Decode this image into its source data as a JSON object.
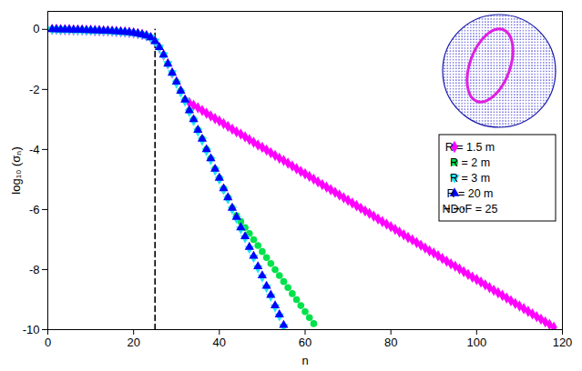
{
  "chart_data": {
    "type": "scatter",
    "x_label": "n",
    "y_label": "log₁₀ (σₙ)",
    "xlim": [
      0,
      120
    ],
    "xticks": [
      0,
      20,
      40,
      60,
      80,
      100,
      120
    ],
    "ylim": [
      -10,
      0.6
    ],
    "yticks": [
      -10,
      -8,
      -6,
      -4,
      -2,
      0
    ],
    "grid": false,
    "legend": "right",
    "series": [
      {
        "name": "R = 1.5 m",
        "color": "#ff00ff",
        "marker": "diamond",
        "x": [
          1,
          2,
          3,
          4,
          5,
          6,
          7,
          8,
          9,
          10,
          11,
          12,
          13,
          14,
          15,
          16,
          17,
          18,
          19,
          20,
          21,
          22,
          23,
          24,
          25,
          26,
          27,
          28,
          29,
          30,
          31,
          32,
          33,
          34,
          35,
          36,
          37,
          38,
          39,
          40,
          41,
          42,
          43,
          44,
          45,
          46,
          47,
          48,
          49,
          50,
          51,
          52,
          53,
          54,
          55,
          56,
          57,
          58,
          59,
          60,
          61,
          62,
          63,
          64,
          65,
          66,
          67,
          68,
          69,
          70,
          71,
          72,
          73,
          74,
          75,
          76,
          77,
          78,
          79,
          80,
          81,
          82,
          83,
          84,
          85,
          86,
          87,
          88,
          89,
          90,
          91,
          92,
          93,
          94,
          95,
          96,
          97,
          98,
          99,
          100,
          101,
          102,
          103,
          104,
          105,
          106,
          107,
          108,
          109,
          110,
          111,
          112,
          113,
          114,
          115,
          116,
          117,
          118
        ],
        "values": [
          0,
          0,
          -0.01,
          -0.01,
          -0.01,
          -0.02,
          -0.02,
          -0.02,
          -0.03,
          -0.03,
          -0.04,
          -0.04,
          -0.05,
          -0.05,
          -0.06,
          -0.07,
          -0.08,
          -0.09,
          -0.1,
          -0.12,
          -0.14,
          -0.17,
          -0.21,
          -0.27,
          -0.4,
          -0.6,
          -0.85,
          -1.15,
          -1.45,
          -1.75,
          -2.05,
          -2.35,
          -2.44,
          -2.53,
          -2.61,
          -2.7,
          -2.79,
          -2.88,
          -2.97,
          -3.05,
          -3.14,
          -3.23,
          -3.32,
          -3.41,
          -3.49,
          -3.58,
          -3.67,
          -3.76,
          -3.85,
          -3.93,
          -4.02,
          -4.11,
          -4.2,
          -4.29,
          -4.37,
          -4.46,
          -4.55,
          -4.64,
          -4.73,
          -4.81,
          -4.9,
          -4.99,
          -5.08,
          -5.17,
          -5.25,
          -5.34,
          -5.43,
          -5.52,
          -5.61,
          -5.69,
          -5.78,
          -5.87,
          -5.96,
          -6.05,
          -6.13,
          -6.22,
          -6.31,
          -6.4,
          -6.49,
          -6.57,
          -6.66,
          -6.75,
          -6.84,
          -6.93,
          -7.01,
          -7.1,
          -7.19,
          -7.28,
          -7.37,
          -7.45,
          -7.54,
          -7.63,
          -7.72,
          -7.81,
          -7.89,
          -7.98,
          -8.07,
          -8.16,
          -8.25,
          -8.33,
          -8.42,
          -8.51,
          -8.6,
          -8.69,
          -8.77,
          -8.86,
          -8.95,
          -9.04,
          -9.13,
          -9.21,
          -9.3,
          -9.39,
          -9.48,
          -9.57,
          -9.65,
          -9.74,
          -9.83,
          -9.92
        ]
      },
      {
        "name": "R = 2 m",
        "color": "#00e24a",
        "marker": "circle",
        "x": [
          1,
          2,
          3,
          4,
          5,
          6,
          7,
          8,
          9,
          10,
          11,
          12,
          13,
          14,
          15,
          16,
          17,
          18,
          19,
          20,
          21,
          22,
          23,
          24,
          25,
          26,
          27,
          28,
          29,
          30,
          31,
          32,
          33,
          34,
          35,
          36,
          37,
          38,
          39,
          40,
          41,
          42,
          43,
          44,
          45,
          46,
          47,
          48,
          49,
          50,
          51,
          52,
          53,
          54,
          55,
          56,
          57,
          58,
          59,
          60,
          61,
          62
        ],
        "values": [
          0,
          0,
          -0.01,
          -0.01,
          -0.01,
          -0.02,
          -0.02,
          -0.02,
          -0.03,
          -0.03,
          -0.04,
          -0.04,
          -0.05,
          -0.05,
          -0.06,
          -0.07,
          -0.08,
          -0.09,
          -0.1,
          -0.12,
          -0.14,
          -0.17,
          -0.21,
          -0.27,
          -0.4,
          -0.6,
          -0.85,
          -1.15,
          -1.45,
          -1.75,
          -2.05,
          -2.35,
          -2.7,
          -3.0,
          -3.35,
          -3.65,
          -4.0,
          -4.3,
          -4.65,
          -4.95,
          -5.3,
          -5.6,
          -5.95,
          -6.2,
          -6.4,
          -6.6,
          -6.8,
          -7.0,
          -7.2,
          -7.4,
          -7.6,
          -7.8,
          -8.0,
          -8.2,
          -8.4,
          -8.6,
          -8.8,
          -9.0,
          -9.2,
          -9.4,
          -9.6,
          -9.8
        ]
      },
      {
        "name": "R = 3 m",
        "color": "#1ee5f5",
        "marker": "triangle-down",
        "x": [
          1,
          2,
          3,
          4,
          5,
          6,
          7,
          8,
          9,
          10,
          11,
          12,
          13,
          14,
          15,
          16,
          17,
          18,
          19,
          20,
          21,
          22,
          23,
          24,
          25,
          26,
          27,
          28,
          29,
          30,
          31,
          32,
          33,
          34,
          35,
          36,
          37,
          38,
          39,
          40,
          41,
          42,
          43,
          44,
          45,
          46,
          47,
          48,
          49,
          50,
          51,
          52,
          53,
          54,
          55
        ],
        "values": [
          0,
          0,
          -0.01,
          -0.01,
          -0.01,
          -0.02,
          -0.02,
          -0.02,
          -0.03,
          -0.03,
          -0.04,
          -0.04,
          -0.05,
          -0.05,
          -0.06,
          -0.07,
          -0.08,
          -0.09,
          -0.1,
          -0.12,
          -0.14,
          -0.17,
          -0.21,
          -0.27,
          -0.4,
          -0.6,
          -0.85,
          -1.15,
          -1.45,
          -1.8,
          -2.1,
          -2.4,
          -2.75,
          -3.05,
          -3.4,
          -3.7,
          -4.05,
          -4.35,
          -4.7,
          -5.0,
          -5.35,
          -5.65,
          -6.0,
          -6.3,
          -6.65,
          -6.95,
          -7.3,
          -7.6,
          -7.95,
          -8.25,
          -8.6,
          -8.9,
          -9.25,
          -9.55,
          -9.9
        ]
      },
      {
        "name": "R = 20 m",
        "color": "#0000ff",
        "marker": "triangle",
        "x": [
          1,
          2,
          3,
          4,
          5,
          6,
          7,
          8,
          9,
          10,
          11,
          12,
          13,
          14,
          15,
          16,
          17,
          18,
          19,
          20,
          21,
          22,
          23,
          24,
          25,
          26,
          27,
          28,
          29,
          30,
          31,
          32,
          33,
          34,
          35,
          36,
          37,
          38,
          39,
          40,
          41,
          42,
          43,
          44,
          45,
          46,
          47,
          48,
          49,
          50,
          51,
          52,
          53,
          54,
          55
        ],
        "values": [
          0,
          0,
          -0.01,
          -0.01,
          -0.01,
          -0.02,
          -0.02,
          -0.02,
          -0.03,
          -0.03,
          -0.04,
          -0.04,
          -0.05,
          -0.05,
          -0.06,
          -0.07,
          -0.08,
          -0.09,
          -0.1,
          -0.12,
          -0.14,
          -0.17,
          -0.21,
          -0.27,
          -0.4,
          -0.6,
          -0.85,
          -1.15,
          -1.45,
          -1.75,
          -2.05,
          -2.35,
          -2.7,
          -3.0,
          -3.35,
          -3.65,
          -4.0,
          -4.3,
          -4.65,
          -4.95,
          -5.3,
          -5.6,
          -5.95,
          -6.25,
          -6.6,
          -6.9,
          -7.25,
          -7.55,
          -7.9,
          -8.2,
          -8.55,
          -8.85,
          -9.2,
          -9.5,
          -9.85
        ]
      },
      {
        "name": "NDoF = 25",
        "type": "line",
        "color": "#000000",
        "line_style": "dashed",
        "x": [
          25,
          25
        ],
        "values": [
          -10,
          0
        ]
      }
    ]
  }
}
